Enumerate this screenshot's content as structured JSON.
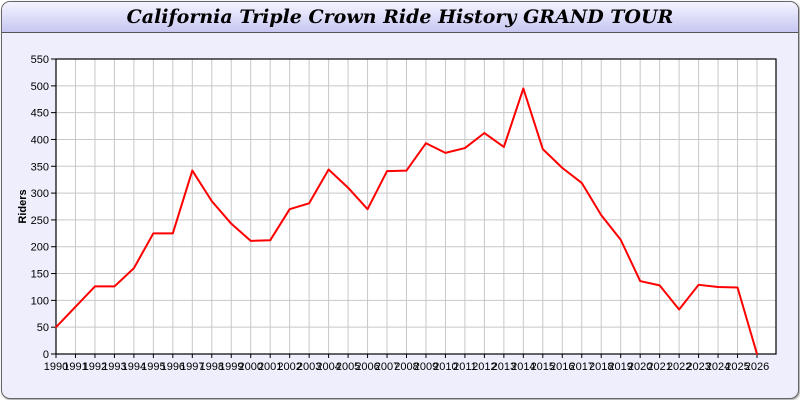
{
  "chart_data": {
    "type": "line",
    "title": "California Triple Crown Ride History GRAND TOUR",
    "xlabel": "",
    "ylabel": "Riders",
    "ylim": [
      0,
      550
    ],
    "yticks": [
      0,
      50,
      100,
      150,
      200,
      250,
      300,
      350,
      400,
      450,
      500,
      550
    ],
    "grid": true,
    "line_color": "#ff0000",
    "x": [
      1990,
      1991,
      1992,
      1993,
      1994,
      1995,
      1996,
      1997,
      1998,
      1999,
      2000,
      2001,
      2002,
      2003,
      2004,
      2005,
      2006,
      2007,
      2008,
      2009,
      2010,
      2011,
      2012,
      2013,
      2014,
      2015,
      2016,
      2017,
      2018,
      2019,
      2020,
      2021,
      2022,
      2023,
      2024,
      2025,
      2026
    ],
    "series": [
      {
        "values": [
          50,
          88,
          126,
          126,
          160,
          225,
          225,
          342,
          285,
          243,
          211,
          212,
          270,
          281,
          344,
          310,
          270,
          341,
          342,
          393,
          375,
          384,
          412,
          386,
          495,
          382,
          347,
          319,
          259,
          213,
          136,
          128,
          83,
          129,
          125,
          124,
          0
        ]
      }
    ]
  }
}
